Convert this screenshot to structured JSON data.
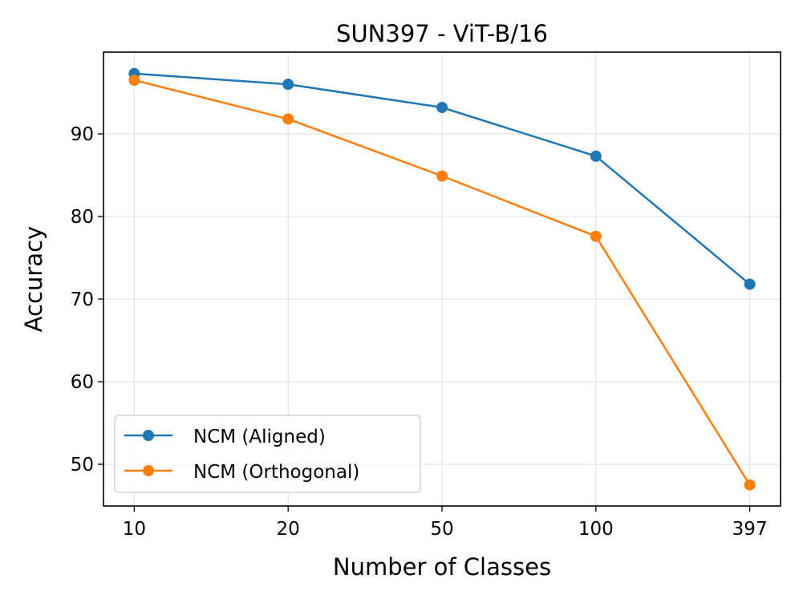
{
  "chart_data": {
    "type": "line",
    "title": "SUN397 - ViT-B/16",
    "xlabel": "Number of Classes",
    "ylabel": "Accuracy",
    "categories": [
      "10",
      "20",
      "50",
      "100",
      "397"
    ],
    "ylim": [
      44.95,
      99.9
    ],
    "yticks": [
      50,
      60,
      70,
      80,
      90
    ],
    "grid": true,
    "legend_position": "lower-left",
    "series": [
      {
        "name": "NCM (Aligned)",
        "color": "#1f77b4",
        "values": [
          97.3,
          96.0,
          93.2,
          87.3,
          71.8
        ]
      },
      {
        "name": "NCM (Orthogonal)",
        "color": "#ff7f0e",
        "values": [
          96.5,
          91.8,
          84.9,
          77.6,
          47.5
        ]
      }
    ]
  }
}
